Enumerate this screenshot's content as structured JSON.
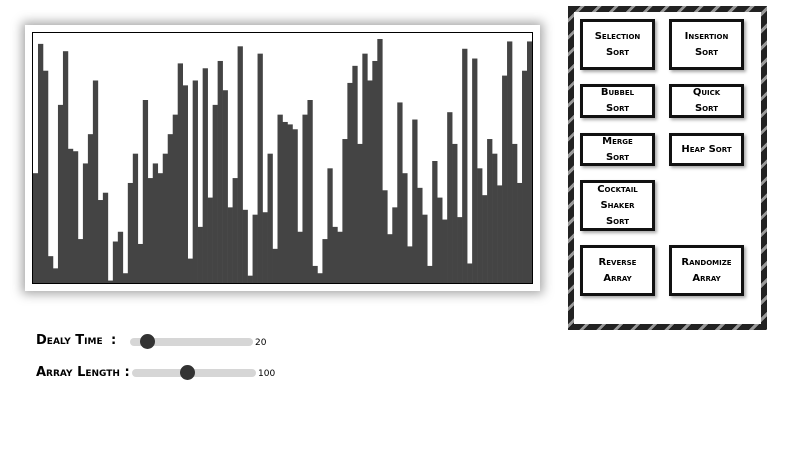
{
  "array": [
    45,
    98,
    87,
    11,
    6,
    73,
    95,
    55,
    54,
    18,
    49,
    61,
    83,
    34,
    37,
    1,
    17,
    21,
    4,
    41,
    53,
    16,
    75,
    43,
    49,
    45,
    53,
    61,
    69,
    90,
    81,
    10,
    83,
    23,
    88,
    35,
    73,
    91,
    79,
    31,
    43,
    97,
    30,
    3,
    28,
    94,
    29,
    53,
    14,
    69,
    66,
    65,
    63,
    21,
    69,
    75,
    7,
    4,
    18,
    47,
    23,
    21,
    59,
    82,
    89,
    57,
    94,
    83,
    91,
    100,
    38,
    20,
    31,
    74,
    45,
    15,
    67,
    39,
    28,
    7,
    50,
    35,
    26,
    70,
    57,
    27,
    96,
    8,
    92,
    47,
    36,
    59,
    53,
    40,
    85,
    99,
    57,
    41,
    87,
    99
  ],
  "buttons": [
    "Selection Sort",
    "Insertion Sort",
    "Bubbel Sort",
    "Quick Sort",
    "Merge Sort",
    "Heap Sort",
    "Cocktail Shaker Sort",
    "Reverse Array",
    "Randomize Array"
  ],
  "controls": {
    "delay": {
      "label": "Dealy Time",
      "separator": ":",
      "value": 20
    },
    "length": {
      "label": "Array Length :",
      "value": 100
    }
  }
}
